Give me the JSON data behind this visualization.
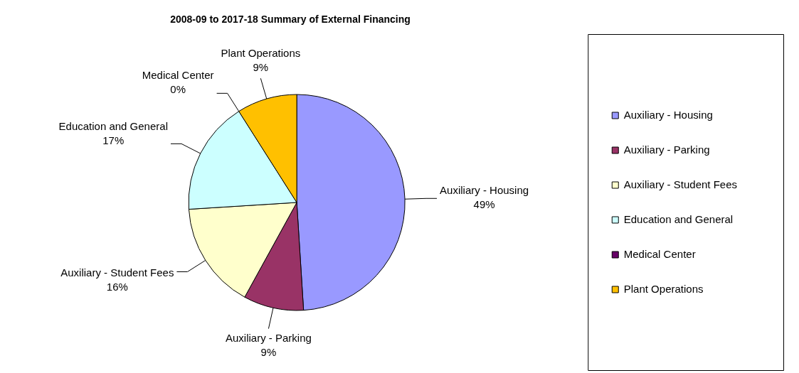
{
  "chart_data": {
    "type": "pie",
    "title": "2008-09 to 2017-18 Summary of External Financing",
    "categories": [
      "Auxiliary - Housing",
      "Auxiliary - Parking",
      "Auxiliary - Student Fees",
      "Education and General",
      "Medical Center",
      "Plant Operations"
    ],
    "values": [
      49,
      9,
      16,
      17,
      0,
      9
    ],
    "value_labels": [
      "49%",
      "9%",
      "16%",
      "17%",
      "0%",
      "9%"
    ],
    "colors": [
      "#9999ff",
      "#993366",
      "#ffffcc",
      "#ccffff",
      "#660066",
      "#ffc000"
    ],
    "legend": "right"
  }
}
